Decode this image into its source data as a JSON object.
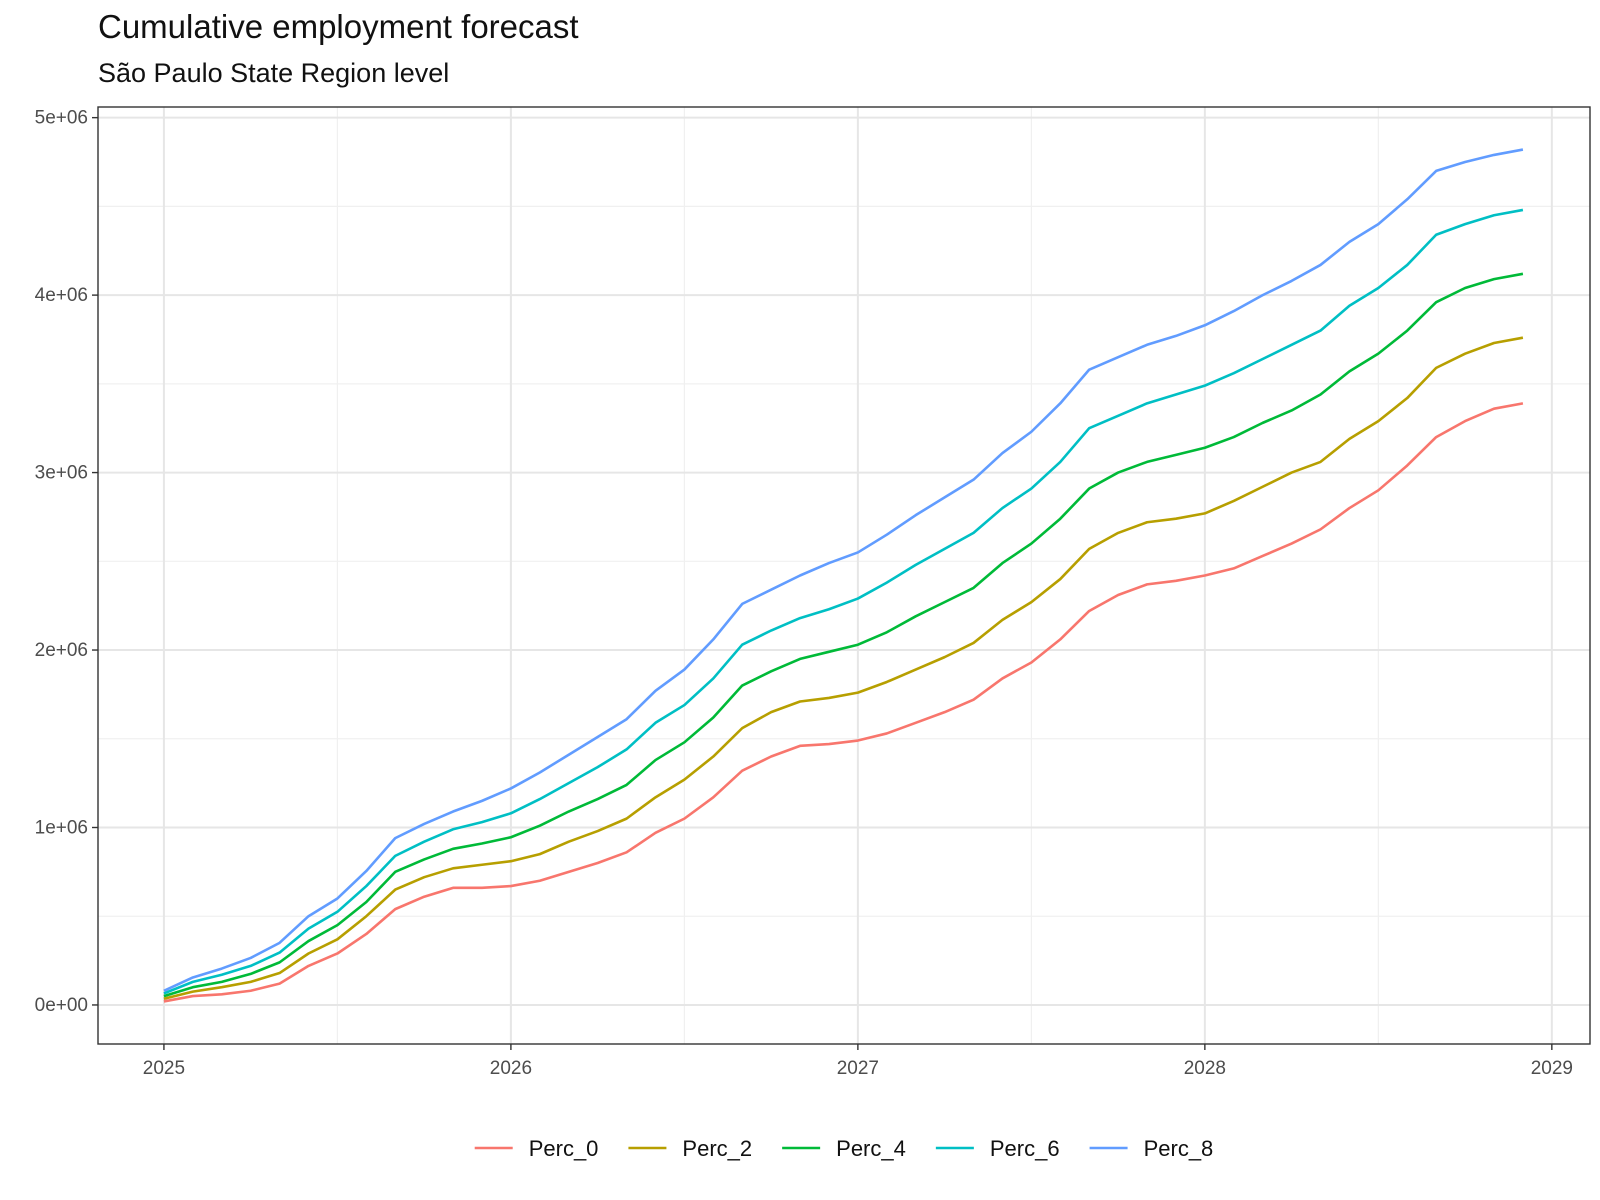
{
  "chart_data": {
    "type": "line",
    "title": "Cumulative employment forecast",
    "subtitle": "São Paulo State Region level",
    "xlabel": "",
    "ylabel": "",
    "xlim": [
      2024.81,
      2029.11
    ],
    "ylim": [
      -220000,
      5060000
    ],
    "x_ticks": [
      2025,
      2026,
      2027,
      2028,
      2029
    ],
    "x_tick_labels": [
      "2025",
      "2026",
      "2027",
      "2028",
      "2029"
    ],
    "y_ticks": [
      0,
      1000000,
      2000000,
      3000000,
      4000000,
      5000000
    ],
    "y_tick_labels": [
      "0e+00",
      "1e+06",
      "2e+06",
      "3e+06",
      "4e+06",
      "5e+06"
    ],
    "grid": true,
    "legend_position": "bottom",
    "x_start": 2025,
    "x_step_months": 1,
    "series": [
      {
        "name": "Perc_0",
        "color": "#F8766D",
        "values": [
          20000,
          50000,
          60000,
          80000,
          120000,
          220000,
          290000,
          400000,
          540000,
          610000,
          660000,
          660000,
          670000,
          700000,
          750000,
          800000,
          860000,
          970000,
          1050000,
          1170000,
          1320000,
          1400000,
          1460000,
          1470000,
          1490000,
          1530000,
          1590000,
          1650000,
          1720000,
          1840000,
          1930000,
          2060000,
          2220000,
          2310000,
          2370000,
          2390000,
          2420000,
          2460000,
          2530000,
          2600000,
          2680000,
          2800000,
          2900000,
          3040000,
          3200000,
          3290000,
          3360000,
          3390000
        ]
      },
      {
        "name": "Perc_2",
        "color": "#B79F00",
        "values": [
          35000,
          75000,
          100000,
          130000,
          180000,
          290000,
          370000,
          500000,
          650000,
          720000,
          770000,
          790000,
          810000,
          850000,
          920000,
          980000,
          1050000,
          1170000,
          1270000,
          1400000,
          1560000,
          1650000,
          1710000,
          1730000,
          1760000,
          1820000,
          1890000,
          1960000,
          2040000,
          2170000,
          2270000,
          2400000,
          2570000,
          2660000,
          2720000,
          2740000,
          2770000,
          2840000,
          2920000,
          3000000,
          3060000,
          3190000,
          3290000,
          3420000,
          3590000,
          3670000,
          3730000,
          3760000
        ]
      },
      {
        "name": "Perc_4",
        "color": "#00BA38",
        "values": [
          50000,
          100000,
          130000,
          175000,
          240000,
          360000,
          450000,
          580000,
          750000,
          820000,
          880000,
          910000,
          945000,
          1010000,
          1090000,
          1160000,
          1240000,
          1380000,
          1480000,
          1620000,
          1800000,
          1880000,
          1950000,
          1990000,
          2030000,
          2100000,
          2190000,
          2270000,
          2350000,
          2490000,
          2600000,
          2740000,
          2910000,
          3000000,
          3060000,
          3100000,
          3140000,
          3200000,
          3280000,
          3350000,
          3440000,
          3570000,
          3670000,
          3800000,
          3960000,
          4040000,
          4090000,
          4120000
        ]
      },
      {
        "name": "Perc_6",
        "color": "#00BFC4",
        "values": [
          65000,
          130000,
          170000,
          220000,
          295000,
          430000,
          525000,
          670000,
          840000,
          920000,
          990000,
          1030000,
          1080000,
          1160000,
          1250000,
          1340000,
          1440000,
          1590000,
          1690000,
          1840000,
          2030000,
          2110000,
          2180000,
          2230000,
          2290000,
          2380000,
          2480000,
          2570000,
          2660000,
          2800000,
          2910000,
          3060000,
          3250000,
          3320000,
          3390000,
          3440000,
          3490000,
          3560000,
          3640000,
          3720000,
          3800000,
          3940000,
          4040000,
          4170000,
          4340000,
          4400000,
          4450000,
          4480000
        ]
      },
      {
        "name": "Perc_8",
        "color": "#619CFF",
        "values": [
          80000,
          155000,
          205000,
          265000,
          350000,
          500000,
          600000,
          755000,
          940000,
          1020000,
          1090000,
          1150000,
          1220000,
          1310000,
          1410000,
          1510000,
          1610000,
          1770000,
          1890000,
          2060000,
          2260000,
          2340000,
          2420000,
          2490000,
          2550000,
          2650000,
          2760000,
          2860000,
          2960000,
          3110000,
          3230000,
          3390000,
          3580000,
          3650000,
          3720000,
          3770000,
          3830000,
          3910000,
          4000000,
          4080000,
          4170000,
          4300000,
          4400000,
          4540000,
          4700000,
          4750000,
          4790000,
          4820000
        ]
      }
    ]
  }
}
